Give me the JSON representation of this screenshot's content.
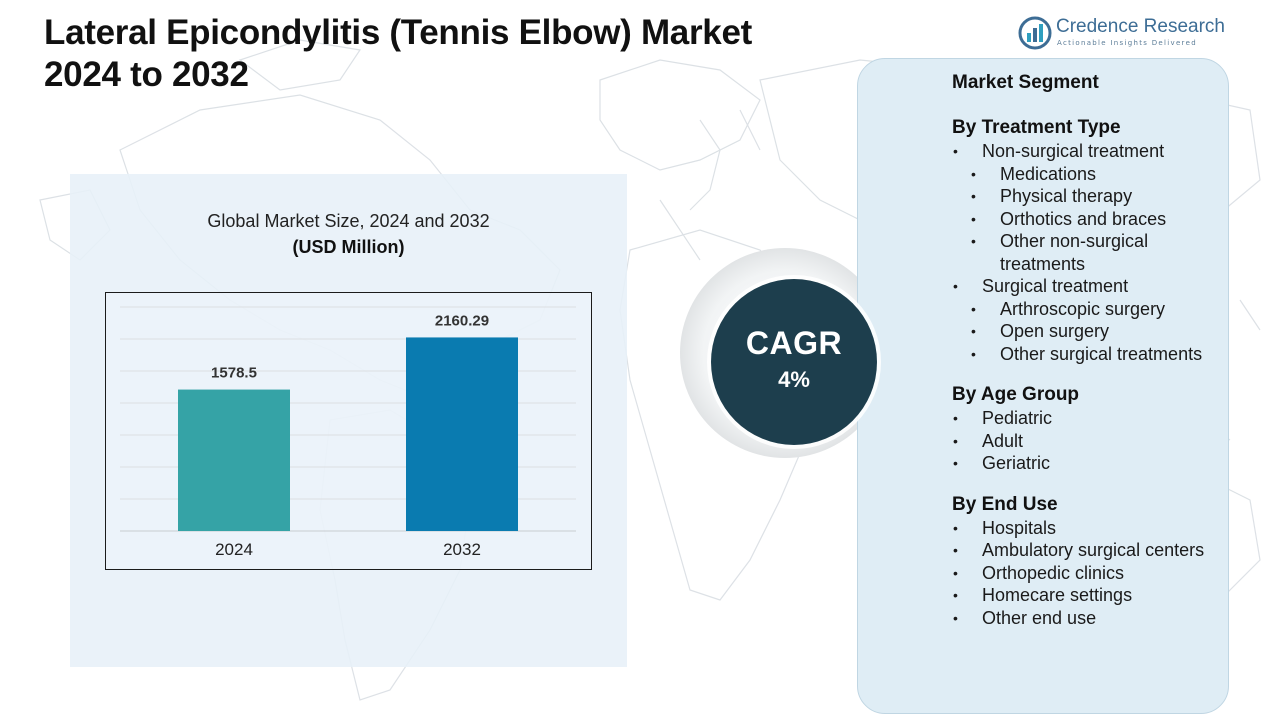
{
  "title_lines": [
    "Lateral Epicondylitis (Tennis Elbow) Market",
    "2024 to 2032"
  ],
  "logo": {
    "name": "Credence Research",
    "tagline": "Actionable Insights Delivered",
    "icon": "credence-research-logo-icon"
  },
  "chart_data": {
    "type": "bar",
    "title": "Global Market Size, 2024 and 2032",
    "unit_label": "(USD Million)",
    "categories": [
      "2024",
      "2032"
    ],
    "values": [
      1578.5,
      2160.29
    ],
    "value_labels": [
      "1578.5",
      "2160.29"
    ],
    "colors": [
      "#35a3a6",
      "#0a7bb0"
    ],
    "ylim": [
      0,
      2500
    ],
    "grid": true,
    "legend": "none",
    "xlabel": "",
    "ylabel": ""
  },
  "cagr": {
    "label": "CAGR",
    "value": "4%",
    "color": "#1d3e4d"
  },
  "segments": {
    "header": "Market Segment",
    "groups": [
      {
        "title": "By Treatment Type",
        "items": [
          {
            "label": "Non-surgical treatment",
            "subitems": [
              "Medications",
              "Physical therapy",
              "Orthotics and braces",
              "Other non-surgical treatments"
            ]
          },
          {
            "label": "Surgical treatment",
            "subitems": [
              "Arthroscopic surgery",
              "Open surgery",
              "Other surgical treatments"
            ]
          }
        ]
      },
      {
        "title": "By Age Group",
        "items": [
          {
            "label": "Pediatric",
            "subitems": []
          },
          {
            "label": "Adult",
            "subitems": []
          },
          {
            "label": "Geriatric",
            "subitems": []
          }
        ]
      },
      {
        "title": "By End Use",
        "items": [
          {
            "label": "Hospitals",
            "subitems": []
          },
          {
            "label": "Ambulatory surgical centers",
            "subitems": []
          },
          {
            "label": "Orthopedic clinics",
            "subitems": []
          },
          {
            "label": "Homecare settings",
            "subitems": []
          },
          {
            "label": "Other end use",
            "subitems": []
          }
        ]
      }
    ]
  }
}
